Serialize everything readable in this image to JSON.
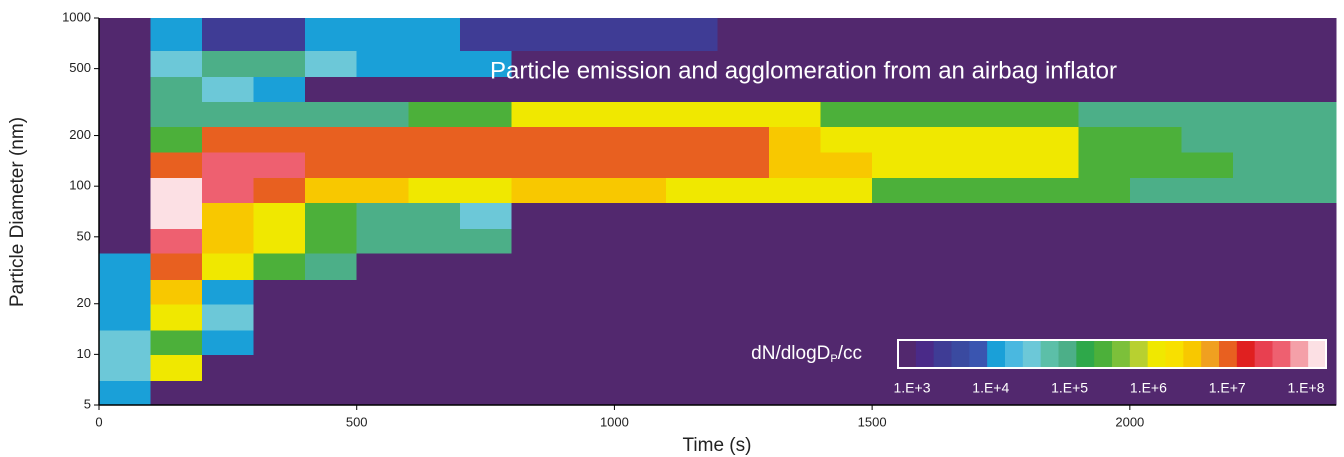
{
  "chart_data": {
    "type": "heatmap",
    "title": "Particle emission and agglomeration from an airbag inflator",
    "xlabel": "Time (s)",
    "ylabel": "Particle Diameter (nm)",
    "xlim": [
      0,
      2400
    ],
    "xticks": [
      0,
      500,
      1000,
      1500,
      2000
    ],
    "ylim": [
      5,
      1000
    ],
    "yticks": [
      5,
      10,
      20,
      50,
      100,
      200,
      500,
      1000
    ],
    "ylog": true,
    "xbins": [
      0,
      100,
      200,
      300,
      400,
      500,
      600,
      700,
      800,
      900,
      1000,
      1100,
      1200,
      1300,
      1400,
      1500,
      1600,
      1700,
      1800,
      1900,
      2000,
      2100,
      2200,
      2300,
      2400
    ],
    "ybins": [
      5,
      7,
      10,
      14,
      20,
      28,
      40,
      56,
      80,
      113,
      160,
      226,
      320,
      450,
      640,
      1000
    ],
    "z": [
      [
        10000.0,
        1000.0,
        1000.0,
        1000.0,
        1000.0,
        1000.0,
        1000.0,
        1000.0,
        1000.0,
        1000.0,
        1000.0,
        1000.0,
        1000.0,
        1000.0,
        1000.0,
        1000.0,
        1000.0,
        1000.0,
        1000.0,
        1000.0,
        1000.0,
        1000.0,
        1000.0,
        1000.0
      ],
      [
        30000.0,
        1000000.0,
        1000.0,
        1000.0,
        1000.0,
        1000.0,
        1000.0,
        1000.0,
        1000.0,
        1000.0,
        1000.0,
        1000.0,
        1000.0,
        1000.0,
        1000.0,
        1000.0,
        1000.0,
        1000.0,
        1000.0,
        1000.0,
        1000.0,
        1000.0,
        1000.0,
        1000.0
      ],
      [
        30000.0,
        300000.0,
        10000.0,
        1000.0,
        1000.0,
        1000.0,
        1000.0,
        1000.0,
        1000.0,
        1000.0,
        1000.0,
        1000.0,
        1000.0,
        1000.0,
        1000.0,
        1000.0,
        1000.0,
        1000.0,
        1000.0,
        1000.0,
        1000.0,
        1000.0,
        1000.0,
        1000.0
      ],
      [
        10000.0,
        1000000.0,
        30000.0,
        1000.0,
        1000.0,
        1000.0,
        1000.0,
        1000.0,
        1000.0,
        1000.0,
        1000.0,
        1000.0,
        1000.0,
        1000.0,
        1000.0,
        1000.0,
        1000.0,
        1000.0,
        1000.0,
        1000.0,
        1000.0,
        1000.0,
        1000.0,
        1000.0
      ],
      [
        10000.0,
        3000000.0,
        10000.0,
        1000.0,
        1000.0,
        1000.0,
        1000.0,
        1000.0,
        1000.0,
        1000.0,
        1000.0,
        1000.0,
        1000.0,
        1000.0,
        1000.0,
        1000.0,
        1000.0,
        1000.0,
        1000.0,
        1000.0,
        1000.0,
        1000.0,
        1000.0,
        1000.0
      ],
      [
        10000.0,
        10000000.0,
        1000000.0,
        300000.0,
        100000.0,
        1000.0,
        1000.0,
        1000.0,
        1000.0,
        1000.0,
        1000.0,
        1000.0,
        1000.0,
        1000.0,
        1000.0,
        1000.0,
        1000.0,
        1000.0,
        1000.0,
        1000.0,
        1000.0,
        1000.0,
        1000.0,
        1000.0
      ],
      [
        1000.0,
        30000000.0,
        3000000.0,
        1000000.0,
        300000.0,
        100000.0,
        100000.0,
        100000.0,
        1000.0,
        1000.0,
        1000.0,
        1000.0,
        1000.0,
        1000.0,
        1000.0,
        1000.0,
        1000.0,
        1000.0,
        1000.0,
        1000.0,
        1000.0,
        1000.0,
        1000.0,
        1000.0
      ],
      [
        1000.0,
        100000000.0,
        3000000.0,
        1000000.0,
        300000.0,
        100000.0,
        100000.0,
        30000.0,
        1000.0,
        1000.0,
        1000.0,
        1000.0,
        1000.0,
        1000.0,
        1000.0,
        1000.0,
        1000.0,
        1000.0,
        1000.0,
        1000.0,
        1000.0,
        1000.0,
        1000.0,
        1000.0
      ],
      [
        1000.0,
        100000000.0,
        30000000.0,
        10000000.0,
        3000000.0,
        3000000.0,
        1000000.0,
        1000000.0,
        3000000.0,
        3000000.0,
        3000000.0,
        1000000.0,
        1000000.0,
        1000000.0,
        1000000.0,
        300000.0,
        300000.0,
        300000.0,
        300000.0,
        300000.0,
        100000.0,
        100000.0,
        100000.0,
        100000.0
      ],
      [
        1000.0,
        10000000.0,
        30000000.0,
        30000000.0,
        10000000.0,
        10000000.0,
        10000000.0,
        10000000.0,
        10000000.0,
        10000000.0,
        10000000.0,
        10000000.0,
        10000000.0,
        3000000.0,
        3000000.0,
        1000000.0,
        1000000.0,
        1000000.0,
        1000000.0,
        300000.0,
        300000.0,
        300000.0,
        100000.0,
        100000.0
      ],
      [
        1000.0,
        300000.0,
        10000000.0,
        10000000.0,
        10000000.0,
        10000000.0,
        10000000.0,
        10000000.0,
        10000000.0,
        10000000.0,
        10000000.0,
        10000000.0,
        10000000.0,
        3000000.0,
        1000000.0,
        1000000.0,
        1000000.0,
        1000000.0,
        1000000.0,
        300000.0,
        300000.0,
        100000.0,
        100000.0,
        100000.0
      ],
      [
        1000.0,
        100000.0,
        100000.0,
        100000.0,
        100000.0,
        100000.0,
        300000.0,
        300000.0,
        1000000.0,
        1000000.0,
        1000000.0,
        1000000.0,
        1000000.0,
        1000000.0,
        300000.0,
        300000.0,
        300000.0,
        300000.0,
        300000.0,
        100000.0,
        100000.0,
        100000.0,
        100000.0,
        100000.0
      ],
      [
        1000.0,
        100000.0,
        30000.0,
        10000.0,
        1000.0,
        1000.0,
        1000.0,
        1000.0,
        1000.0,
        1000.0,
        1000.0,
        1000.0,
        1000.0,
        1000.0,
        1000.0,
        1000.0,
        1000.0,
        1000.0,
        1000.0,
        1000.0,
        1000.0,
        1000.0,
        1000.0,
        1000.0
      ],
      [
        1000.0,
        30000.0,
        100000.0,
        100000.0,
        30000.0,
        10000.0,
        10000.0,
        10000.0,
        1000.0,
        1000.0,
        1000.0,
        1000.0,
        1000.0,
        1000.0,
        1000.0,
        1000.0,
        1000.0,
        1000.0,
        1000.0,
        1000.0,
        1000.0,
        1000.0,
        1000.0,
        1000.0
      ],
      [
        1000.0,
        10000.0,
        3000.0,
        3000.0,
        10000.0,
        10000.0,
        10000.0,
        3000.0,
        3000.0,
        3000.0,
        3000.0,
        3000.0,
        1000.0,
        1000.0,
        1000.0,
        1000.0,
        1000.0,
        1000.0,
        1000.0,
        1000.0,
        1000.0,
        1000.0,
        1000.0,
        1000.0
      ]
    ],
    "colorbar": {
      "label": [
        "dN/dlogD",
        "P",
        "/cc"
      ],
      "lim": [
        1000,
        100000000
      ],
      "ticks": [
        {
          "value": 1000,
          "label": "1.E+3"
        },
        {
          "value": 10000,
          "label": "1.E+4"
        },
        {
          "value": 100000,
          "label": "1.E+5"
        },
        {
          "value": 1000000,
          "label": "1.E+6"
        },
        {
          "value": 10000000,
          "label": "1.E+7"
        },
        {
          "value": 100000000,
          "label": "1.E+8"
        }
      ],
      "colors": [
        "#52286e",
        "#4a2a88",
        "#3f3c95",
        "#3a4aa0",
        "#3a55b0",
        "#1aa0d8",
        "#4ab8e0",
        "#6cc8d8",
        "#5cbfa8",
        "#4caf88",
        "#2ea84a",
        "#4cb03a",
        "#7cc03a",
        "#b8d030",
        "#f0e800",
        "#f8e000",
        "#f8c800",
        "#f0a020",
        "#e86020",
        "#e02020",
        "#e84050",
        "#ee6070",
        "#f4a0a8",
        "#fce0e4"
      ]
    }
  }
}
